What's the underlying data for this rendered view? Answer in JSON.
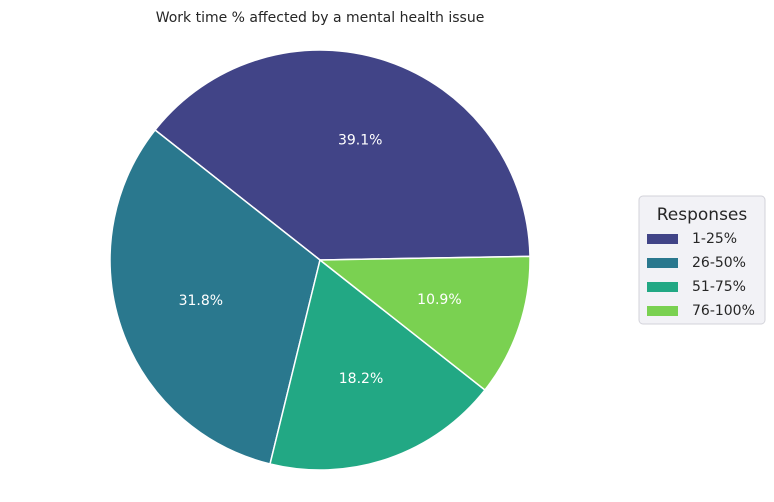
{
  "chart_data": {
    "type": "pie",
    "title": "Work time % affected by a mental health issue",
    "categories": [
      "1-25%",
      "26-50%",
      "51-75%",
      "76-100%"
    ],
    "values": [
      39.1,
      31.8,
      18.2,
      10.9
    ],
    "labels": [
      "39.1%",
      "31.8%",
      "18.2%",
      "10.9%"
    ],
    "colors": [
      "#414487",
      "#2a788e",
      "#22a884",
      "#7ad151"
    ],
    "start_angle_deg": 1,
    "direction": "counterclockwise",
    "legend": {
      "title": "Responses",
      "placement": "right"
    }
  }
}
